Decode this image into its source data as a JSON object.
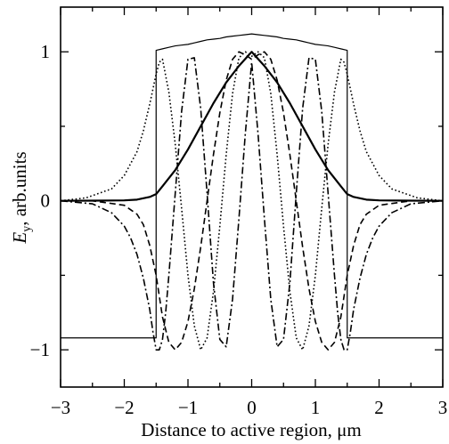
{
  "chart_data": {
    "type": "line",
    "title": "",
    "xlabel": "Distance to active region, μm",
    "ylabel": "Eᵧ, arb.units",
    "ylabel_main": "E",
    "ylabel_sub": "y",
    "ylabel_rest": ", arb.units",
    "xlim": [
      -3,
      3
    ],
    "ylim": [
      -1.25,
      1.3
    ],
    "x_ticks": [
      -3,
      -2,
      -1,
      0,
      1,
      2,
      3
    ],
    "x_tick_labels": [
      "−3",
      "−2",
      "−1",
      "0",
      "1",
      "2",
      "3"
    ],
    "y_ticks": [
      -1,
      0,
      1
    ],
    "y_tick_labels": [
      "−1",
      "0",
      "1"
    ],
    "grid": false,
    "legend": "none",
    "series": [
      {
        "style": "solid-thin",
        "description": "refractive-index profile",
        "x": [
          -3.0,
          -1.5,
          -1.5,
          -1.4,
          -1.3,
          -1.2,
          -1.1,
          -1.0,
          -0.9,
          -0.8,
          -0.7,
          -0.6,
          -0.5,
          -0.4,
          -0.3,
          -0.2,
          -0.1,
          0.0,
          0.1,
          0.2,
          0.3,
          0.4,
          0.5,
          0.6,
          0.7,
          0.8,
          0.9,
          1.0,
          1.1,
          1.2,
          1.3,
          1.4,
          1.5,
          1.5,
          3.0
        ],
        "y": [
          -0.92,
          -0.92,
          1.01,
          1.02,
          1.03,
          1.04,
          1.045,
          1.05,
          1.06,
          1.07,
          1.08,
          1.085,
          1.09,
          1.1,
          1.105,
          1.11,
          1.115,
          1.12,
          1.115,
          1.11,
          1.105,
          1.1,
          1.09,
          1.085,
          1.08,
          1.07,
          1.06,
          1.05,
          1.045,
          1.04,
          1.03,
          1.02,
          1.01,
          -0.92,
          -0.92
        ]
      },
      {
        "style": "solid-thick",
        "description": "fundamental mode",
        "x": [
          -3.0,
          -2.5,
          -2.0,
          -1.8,
          -1.6,
          -1.5,
          -1.4,
          -1.2,
          -1.0,
          -0.8,
          -0.6,
          -0.4,
          -0.2,
          0.0,
          0.2,
          0.4,
          0.6,
          0.8,
          1.0,
          1.2,
          1.4,
          1.5,
          1.6,
          1.8,
          2.0,
          2.5,
          3.0
        ],
        "y": [
          0.0,
          0.001,
          0.003,
          0.008,
          0.026,
          0.045,
          0.098,
          0.206,
          0.345,
          0.5,
          0.655,
          0.794,
          0.905,
          1.0,
          0.905,
          0.794,
          0.655,
          0.5,
          0.345,
          0.206,
          0.098,
          0.045,
          0.026,
          0.008,
          0.003,
          0.001,
          0.0
        ]
      },
      {
        "style": "dashed",
        "description": "mode 3",
        "x": [
          -3.0,
          -2.5,
          -2.0,
          -1.8,
          -1.7,
          -1.6,
          -1.5,
          -1.4,
          -1.3,
          -1.2,
          -1.1,
          -1.0,
          -0.9,
          -0.8,
          -0.7,
          -0.6,
          -0.5,
          -0.4,
          -0.3,
          -0.2,
          -0.1,
          0.0,
          0.1,
          0.2,
          0.3,
          0.4,
          0.5,
          0.6,
          0.7,
          0.8,
          0.9,
          1.0,
          1.1,
          1.2,
          1.3,
          1.4,
          1.5,
          1.6,
          1.7,
          1.8,
          2.0,
          2.5,
          3.0
        ],
        "y": [
          0.0,
          0.0,
          -0.03,
          -0.09,
          -0.16,
          -0.3,
          -0.5,
          -0.78,
          -0.95,
          -1.0,
          -0.95,
          -0.81,
          -0.59,
          -0.31,
          -0.0,
          0.31,
          0.59,
          0.81,
          0.95,
          1.0,
          0.98,
          0.95,
          0.98,
          1.0,
          0.95,
          0.81,
          0.59,
          0.31,
          0.0,
          -0.31,
          -0.59,
          -0.81,
          -0.95,
          -1.0,
          -0.95,
          -0.78,
          -0.5,
          -0.3,
          -0.16,
          -0.09,
          -0.03,
          0.0,
          0.0
        ]
      },
      {
        "style": "dotted",
        "description": "mode 5",
        "x": [
          -3.0,
          -2.6,
          -2.2,
          -2.0,
          -1.8,
          -1.7,
          -1.6,
          -1.5,
          -1.45,
          -1.4,
          -1.3,
          -1.2,
          -1.1,
          -1.0,
          -0.9,
          -0.8,
          -0.7,
          -0.6,
          -0.5,
          -0.4,
          -0.3,
          -0.2,
          -0.1,
          0.0,
          0.1,
          0.2,
          0.3,
          0.4,
          0.5,
          0.6,
          0.7,
          0.8,
          0.9,
          1.0,
          1.1,
          1.2,
          1.3,
          1.4,
          1.45,
          1.5,
          1.6,
          1.7,
          1.8,
          2.0,
          2.2,
          2.6,
          3.0
        ],
        "y": [
          0.0,
          0.02,
          0.08,
          0.17,
          0.33,
          0.47,
          0.65,
          0.85,
          0.93,
          0.95,
          0.73,
          0.38,
          -0.05,
          -0.5,
          -0.84,
          -1.0,
          -0.92,
          -0.61,
          -0.17,
          0.31,
          0.72,
          0.96,
          1.0,
          0.97,
          1.0,
          0.96,
          0.72,
          0.31,
          -0.17,
          -0.61,
          -0.92,
          -1.0,
          -0.84,
          -0.5,
          -0.05,
          0.38,
          0.73,
          0.95,
          0.93,
          0.85,
          0.65,
          0.47,
          0.33,
          0.17,
          0.08,
          0.02,
          0.0
        ]
      },
      {
        "style": "dash-dot",
        "description": "mode 7",
        "x": [
          -3.0,
          -2.5,
          -2.2,
          -2.0,
          -1.9,
          -1.8,
          -1.7,
          -1.6,
          -1.55,
          -1.5,
          -1.45,
          -1.4,
          -1.35,
          -1.3,
          -1.2,
          -1.1,
          -1.0,
          -0.9,
          -0.8,
          -0.7,
          -0.6,
          -0.5,
          -0.4,
          -0.3,
          -0.2,
          -0.1,
          0.0,
          0.1,
          0.2,
          0.3,
          0.4,
          0.5,
          0.6,
          0.7,
          0.8,
          0.9,
          1.0,
          1.1,
          1.2,
          1.3,
          1.35,
          1.4,
          1.45,
          1.5,
          1.55,
          1.6,
          1.7,
          1.8,
          1.9,
          2.0,
          2.2,
          2.5,
          3.0
        ],
        "y": [
          0.0,
          -0.02,
          -0.08,
          -0.17,
          -0.25,
          -0.36,
          -0.52,
          -0.73,
          -0.88,
          -1.0,
          -1.0,
          -0.93,
          -0.75,
          -0.5,
          0.05,
          0.6,
          0.95,
          0.96,
          0.62,
          0.05,
          -0.55,
          -0.93,
          -0.98,
          -0.66,
          -0.12,
          0.45,
          0.93,
          0.45,
          -0.12,
          -0.66,
          -0.98,
          -0.93,
          -0.55,
          0.05,
          0.62,
          0.96,
          0.95,
          0.6,
          0.05,
          -0.5,
          -0.75,
          -0.93,
          -1.0,
          -1.0,
          -0.88,
          -0.73,
          -0.52,
          -0.36,
          -0.25,
          -0.17,
          -0.08,
          -0.02,
          0.0
        ]
      }
    ]
  }
}
